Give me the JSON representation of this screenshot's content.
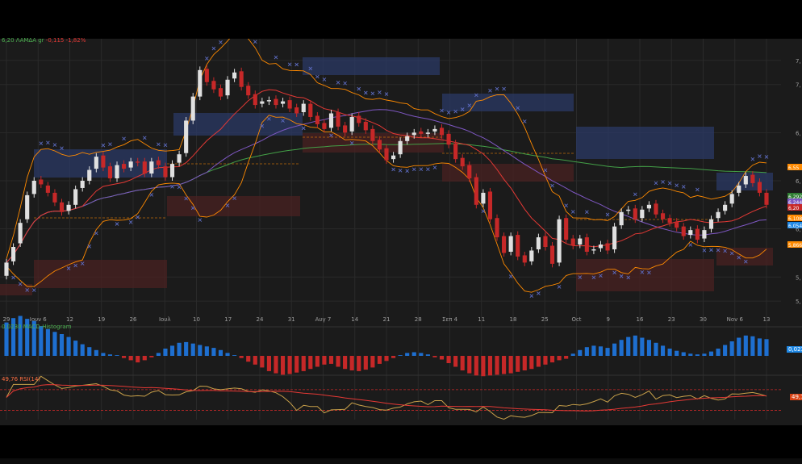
{
  "header": {
    "symbol_line": "6,20 ΛΑΜΔΑ gr",
    "change": "-0,115 -1,82%",
    "symbol_color": "#4caf50",
    "change_color": "#e53935"
  },
  "macd": {
    "label": "0,0230 MACD-Histogram",
    "label_color": "#4caf50",
    "value_badge": "0,0230"
  },
  "rsi": {
    "label": "49,76 RSI(14)",
    "label_color": "#ff7043",
    "value_badge": "49,76"
  },
  "price_badges": [
    {
      "text": "6,55",
      "color": "#ff8a00"
    },
    {
      "text": "6,292",
      "color": "#2e7d32"
    },
    {
      "text": "6,244",
      "color": "#7e57c2"
    },
    {
      "text": "6,20",
      "color": "#c62828"
    },
    {
      "text": "6,108",
      "color": "#ff8a00"
    },
    {
      "text": "6,054",
      "color": "#1e88e5"
    },
    {
      "text": "5,866",
      "color": "#ff8a00"
    }
  ],
  "chart_data": {
    "type": "candlestick",
    "symbol": "ΛΑΜΔΑ gr",
    "last_price": 6.2,
    "y_ticks": [
      {
        "label": "7,",
        "value": 7.4
      },
      {
        "label": "7,",
        "value": 7.2
      },
      {
        "label": "6,",
        "value": 6.8
      },
      {
        "label": "6,",
        "value": 6.4
      },
      {
        "label": "6,",
        "value": 6.0
      },
      {
        "label": "5,",
        "value": 5.6
      },
      {
        "label": "5,",
        "value": 5.4
      }
    ],
    "ylim": [
      5.3,
      7.5
    ],
    "x_ticks": [
      "29",
      "Ιουν 6",
      "12",
      "19",
      "26",
      "Ιουλ",
      "10",
      "17",
      "24",
      "31",
      "Αυγ 7",
      "14",
      "21",
      "28",
      "Σεπ 4",
      "11",
      "18",
      "25",
      "Oct",
      "9",
      "16",
      "23",
      "30",
      "Nov 6",
      "13"
    ],
    "candles_close": [
      5.72,
      5.85,
      6.05,
      6.28,
      6.4,
      6.37,
      6.3,
      6.22,
      6.14,
      6.2,
      6.33,
      6.4,
      6.49,
      6.6,
      6.51,
      6.42,
      6.53,
      6.5,
      6.56,
      6.55,
      6.46,
      6.56,
      6.53,
      6.43,
      6.54,
      6.62,
      6.9,
      7.1,
      7.32,
      7.22,
      7.16,
      7.1,
      7.24,
      7.3,
      7.18,
      7.11,
      7.03,
      7.06,
      7.07,
      7.03,
      7.06,
      7.0,
      6.96,
      7.04,
      6.93,
      6.87,
      6.83,
      6.96,
      6.85,
      6.8,
      6.93,
      6.88,
      6.82,
      6.73,
      6.66,
      6.57,
      6.61,
      6.73,
      6.77,
      6.8,
      6.79,
      6.8,
      6.83,
      6.78,
      6.7,
      6.58,
      6.52,
      6.42,
      6.2,
      6.3,
      6.08,
      5.93,
      5.8,
      5.94,
      5.77,
      5.72,
      5.82,
      5.93,
      5.85,
      5.71,
      6.08,
      5.91,
      5.86,
      5.92,
      5.81,
      5.83,
      5.87,
      5.82,
      6.02,
      6.14,
      6.16,
      6.08,
      6.16,
      6.2,
      6.12,
      6.08,
      6.05,
      6.01,
      5.94,
      5.99,
      5.91,
      5.99,
      6.08,
      6.14,
      6.2,
      6.29,
      6.36,
      6.44,
      6.38,
      6.3,
      6.2
    ],
    "candles_open": [
      5.61,
      5.73,
      5.88,
      6.08,
      6.29,
      6.41,
      6.36,
      6.3,
      6.22,
      6.15,
      6.2,
      6.34,
      6.4,
      6.5,
      6.61,
      6.52,
      6.42,
      6.54,
      6.51,
      6.56,
      6.56,
      6.46,
      6.57,
      6.52,
      6.43,
      6.55,
      6.63,
      6.9,
      7.1,
      7.33,
      7.23,
      7.17,
      7.11,
      7.25,
      7.31,
      7.19,
      7.12,
      7.04,
      7.06,
      7.08,
      7.04,
      7.07,
      7.01,
      6.97,
      7.04,
      6.94,
      6.88,
      6.84,
      6.97,
      6.86,
      6.81,
      6.94,
      6.89,
      6.83,
      6.74,
      6.67,
      6.58,
      6.62,
      6.73,
      6.78,
      6.81,
      6.79,
      6.81,
      6.84,
      6.79,
      6.71,
      6.59,
      6.53,
      6.43,
      6.21,
      6.31,
      6.09,
      5.94,
      5.81,
      5.95,
      5.78,
      5.73,
      5.83,
      5.94,
      5.86,
      5.72,
      6.09,
      5.92,
      5.87,
      5.93,
      5.82,
      5.84,
      5.88,
      5.83,
      6.03,
      6.15,
      6.17,
      6.09,
      6.17,
      6.21,
      6.13,
      6.09,
      6.06,
      6.02,
      5.95,
      6.0,
      5.92,
      6.0,
      6.09,
      6.15,
      6.21,
      6.3,
      6.37,
      6.45,
      6.39,
      6.3
    ],
    "series": [
      {
        "name": "SMA200",
        "color": "#43a047"
      },
      {
        "name": "SMA50",
        "color": "#7e57c2"
      },
      {
        "name": "SMA20",
        "color": "#e53935"
      },
      {
        "name": "Bollinger",
        "color": "#ff8a00"
      },
      {
        "name": "Parabolic SAR",
        "color": "#5c6bc0"
      }
    ],
    "macd_histogram": [
      0.046,
      0.052,
      0.055,
      0.051,
      0.048,
      0.041,
      0.037,
      0.033,
      0.03,
      0.026,
      0.021,
      0.016,
      0.012,
      0.008,
      0.004,
      0.002,
      0.001,
      -0.003,
      -0.006,
      -0.009,
      -0.006,
      -0.002,
      0.004,
      0.01,
      0.014,
      0.018,
      0.019,
      0.017,
      0.015,
      0.013,
      0.011,
      0.008,
      0.004,
      0.001,
      -0.003,
      -0.008,
      -0.012,
      -0.016,
      -0.021,
      -0.024,
      -0.026,
      -0.025,
      -0.023,
      -0.021,
      -0.018,
      -0.015,
      -0.012,
      -0.011,
      -0.015,
      -0.018,
      -0.02,
      -0.021,
      -0.019,
      -0.016,
      -0.011,
      -0.007,
      -0.003,
      0.001,
      0.004,
      0.005,
      0.004,
      0.002,
      -0.002,
      -0.005,
      -0.01,
      -0.015,
      -0.02,
      -0.024,
      -0.027,
      -0.028,
      -0.027,
      -0.026,
      -0.025,
      -0.024,
      -0.022,
      -0.02,
      -0.018,
      -0.015,
      -0.012,
      -0.009,
      -0.006,
      -0.004,
      0.003,
      0.008,
      0.012,
      0.014,
      0.013,
      0.011,
      0.017,
      0.022,
      0.026,
      0.028,
      0.025,
      0.022,
      0.018,
      0.014,
      0.01,
      0.007,
      0.005,
      0.003,
      0.002,
      0.003,
      0.006,
      0.01,
      0.015,
      0.02,
      0.025,
      0.028,
      0.027,
      0.024,
      0.023
    ],
    "rsi_last": 49.76
  }
}
